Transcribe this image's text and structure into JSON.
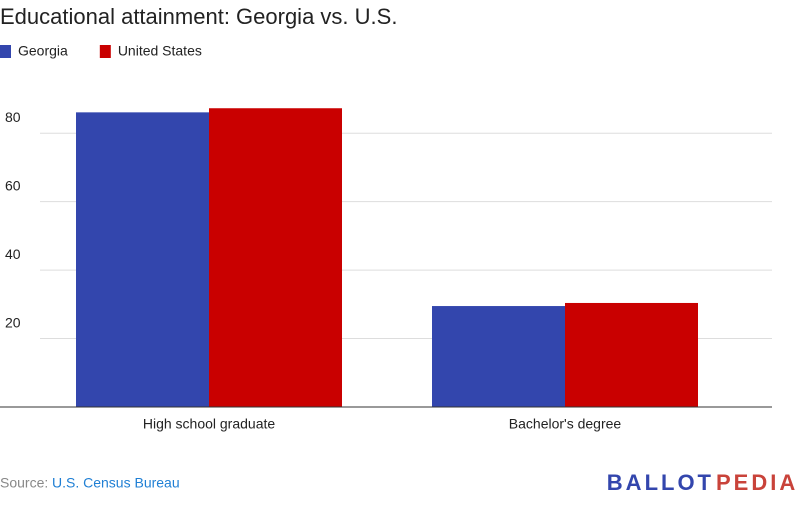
{
  "chart_data": {
    "type": "bar",
    "title": "Educational attainment: Georgia vs. U.S.",
    "categories": [
      "High school graduate",
      "Bachelor's degree"
    ],
    "series": [
      {
        "name": "Georgia",
        "color": "#3346ad",
        "values": [
          86.1,
          29.5
        ]
      },
      {
        "name": "United States",
        "color": "#c90000",
        "values": [
          87.3,
          30.4
        ]
      }
    ],
    "ylim": [
      0,
      90
    ],
    "yticks": [
      20,
      40,
      60,
      80
    ],
    "grid": true,
    "source_label": "Source:",
    "source": "U.S. Census Bureau",
    "logo": [
      "BALLOT",
      "PEDIA"
    ]
  }
}
